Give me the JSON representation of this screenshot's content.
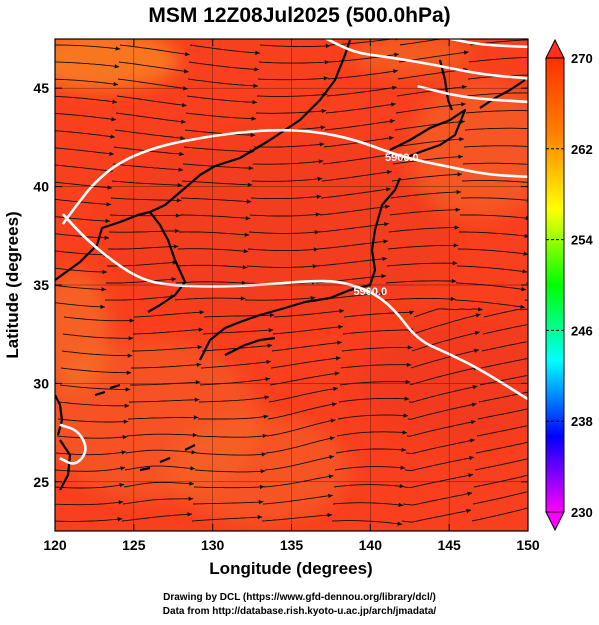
{
  "chart_data": {
    "type": "heatmap",
    "title": "MSM 12Z08Jul2025 (500.0hPa)",
    "xlabel": "Longitude (degrees)",
    "ylabel": "Latitude  (degrees)",
    "xlim": [
      120,
      150
    ],
    "ylim": [
      22.5,
      47.5
    ],
    "x_ticks": [
      120,
      125,
      130,
      135,
      140,
      145,
      150
    ],
    "y_ticks": [
      25,
      30,
      35,
      40,
      45
    ],
    "grid": true,
    "colorbar": {
      "min": 230,
      "max": 270,
      "tick_values": [
        230,
        238,
        246,
        254,
        262,
        270
      ],
      "colors": [
        "#ff00ff",
        "#0000ff",
        "#00ffff",
        "#00ff00",
        "#ffff00",
        "#ff8000",
        "#ff3000"
      ]
    },
    "contours": [
      {
        "label": "5900.0",
        "points": [
          [
            120.5,
            38.6
          ],
          [
            122,
            37.3
          ],
          [
            124,
            36
          ],
          [
            125.5,
            35.3
          ],
          [
            127,
            35
          ],
          [
            130,
            34.9
          ],
          [
            133,
            35
          ],
          [
            136,
            35.2
          ],
          [
            138,
            35.2
          ],
          [
            140,
            34.7
          ],
          [
            141.5,
            33.8
          ],
          [
            143,
            32.2
          ],
          [
            145,
            31.5
          ],
          [
            147,
            30.7
          ],
          [
            150,
            29.2
          ]
        ]
      },
      {
        "label": "5900.0",
        "points": [
          [
            120.5,
            38.1
          ],
          [
            121.5,
            39.2
          ],
          [
            122.5,
            40.2
          ],
          [
            124,
            41.2
          ],
          [
            126,
            41.9
          ],
          [
            128,
            42.3
          ],
          [
            131,
            42.7
          ],
          [
            134,
            42.9
          ],
          [
            136.5,
            42.8
          ],
          [
            139,
            42.4
          ],
          [
            142,
            41.5
          ],
          [
            145,
            41
          ],
          [
            147.5,
            40.6
          ],
          [
            150,
            40.5
          ]
        ]
      },
      {
        "label": "",
        "points": [
          [
            137,
            47.6
          ],
          [
            139,
            46.8
          ],
          [
            141,
            46.6
          ],
          [
            144,
            46.2
          ],
          [
            147,
            45.7
          ],
          [
            150,
            45.5
          ]
        ]
      },
      {
        "label": "",
        "points": [
          [
            143,
            45.1
          ],
          [
            146,
            44.5
          ],
          [
            150,
            44.3
          ]
        ]
      },
      {
        "label": "",
        "points": [
          [
            144.5,
            47.6
          ],
          [
            147,
            47.2
          ],
          [
            150,
            47.1
          ]
        ]
      },
      {
        "label": "",
        "points": [
          [
            120.3,
            27.9
          ],
          [
            121.5,
            27.6
          ],
          [
            122.1,
            26.6
          ],
          [
            121.3,
            25.8
          ],
          [
            120.3,
            26.2
          ]
        ]
      }
    ],
    "annotations": [
      "Drawing by DCL (https://www.gfd-dennou.org/library/dcl/)",
      "Data from http://database.rish.kyoto-u.ac.jp/arch/jmadata/"
    ]
  }
}
